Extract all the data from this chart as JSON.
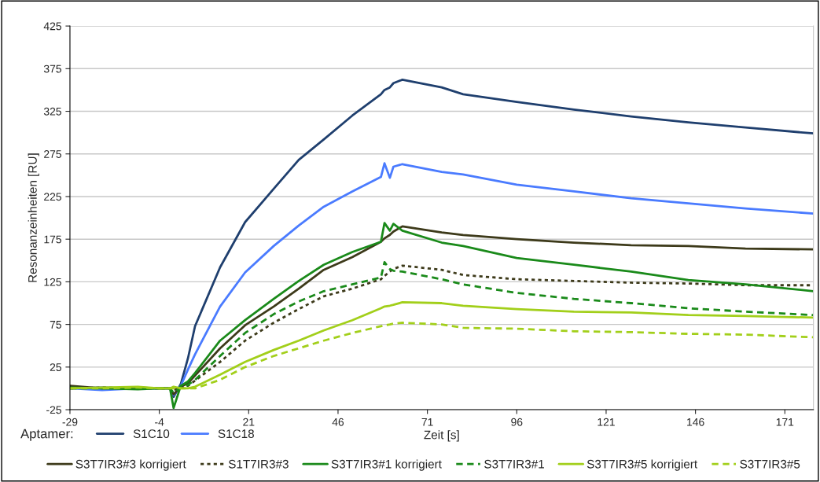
{
  "chart_data": {
    "type": "line",
    "xlabel": "Zeit [s]",
    "ylabel": "Resonanzeinheiten [RU]",
    "legend_title": "Aptamer:",
    "x": [
      -29,
      -20,
      -10,
      -4,
      -1,
      0,
      2,
      4,
      6,
      13,
      20,
      28,
      35,
      42,
      50,
      58,
      59,
      60.5,
      61.5,
      64,
      75,
      81,
      96,
      112,
      128,
      144,
      160,
      179
    ],
    "series": [
      {
        "name": "S1C10",
        "color": "#1f3f6e",
        "line_style": "solid",
        "values": [
          0,
          1,
          0,
          0,
          0,
          -10,
          5,
          35,
          73,
          142,
          195,
          234,
          268,
          292,
          320,
          345,
          350,
          353,
          358,
          362,
          353,
          345,
          336,
          327,
          319,
          312,
          306,
          299
        ]
      },
      {
        "name": "S1C18",
        "color": "#4a7bff",
        "line_style": "solid",
        "values": [
          0,
          -2,
          0,
          null,
          0,
          -8,
          3,
          22,
          40,
          96,
          136,
          167,
          191,
          213,
          231,
          248,
          264,
          247,
          260,
          263,
          254,
          251,
          239,
          231,
          223,
          217,
          211,
          205
        ]
      },
      {
        "name": "S3T7IR3#3 korrigiert",
        "color": "#3d3a1a",
        "line_style": "solid",
        "values": [
          3,
          0,
          1,
          0,
          0,
          -7,
          2,
          6,
          15,
          47,
          74,
          96,
          117,
          139,
          154,
          172,
          176,
          180,
          184,
          190,
          183,
          180,
          175,
          171,
          168,
          167,
          164,
          163
        ]
      },
      {
        "name": "S1T7IR3#3",
        "color": "#3d3a1a",
        "line_style": "dotted",
        "values": [
          0,
          1,
          0,
          0,
          0,
          -2,
          1,
          3,
          9,
          31,
          56,
          77,
          93,
          108,
          117,
          128,
          132,
          137,
          140,
          144,
          139,
          133,
          128,
          126,
          124,
          123,
          121,
          121
        ]
      },
      {
        "name": "S3T7IR3#1 korrigiert",
        "color": "#1a8a1a",
        "line_style": "solid",
        "values": [
          1,
          0,
          -1,
          0,
          0,
          -23,
          3,
          8,
          18,
          56,
          80,
          105,
          126,
          145,
          160,
          172,
          194,
          185,
          193,
          185,
          171,
          167,
          153,
          145,
          137,
          127,
          122,
          114
        ]
      },
      {
        "name": "S3T7IR3#1",
        "color": "#1a8a1a",
        "line_style": "dashed",
        "values": [
          0,
          0,
          1,
          0,
          0,
          -5,
          1,
          4,
          10,
          38,
          65,
          87,
          102,
          114,
          122,
          130,
          148,
          140,
          138,
          137,
          128,
          122,
          112,
          105,
          100,
          94,
          90,
          86
        ]
      },
      {
        "name": "S3T7IR3#5 korrigiert",
        "color": "#a2cf1a",
        "line_style": "solid",
        "values": [
          0,
          1,
          2,
          0,
          0,
          2,
          0,
          0,
          2,
          16,
          31,
          45,
          56,
          68,
          80,
          94,
          96,
          97,
          98,
          101,
          100,
          97,
          93,
          90,
          89,
          86,
          85,
          83
        ]
      },
      {
        "name": "S3T7IR3#5",
        "color": "#a2cf1a",
        "line_style": "dashed",
        "values": [
          0,
          0,
          1,
          0,
          0,
          0,
          0,
          0,
          0,
          10,
          25,
          38,
          47,
          56,
          65,
          73,
          74,
          75,
          76,
          77,
          75,
          71,
          70,
          67,
          66,
          64,
          63,
          60
        ]
      }
    ],
    "xlim": [
      -29,
      179
    ],
    "ylim": [
      -25,
      425
    ],
    "xticks": [
      -29,
      -4,
      21,
      46,
      71,
      96,
      121,
      146,
      171
    ],
    "yticks": [
      -25,
      25,
      75,
      125,
      175,
      225,
      275,
      325,
      375,
      425
    ],
    "grid": "y",
    "legend": "bottom"
  }
}
